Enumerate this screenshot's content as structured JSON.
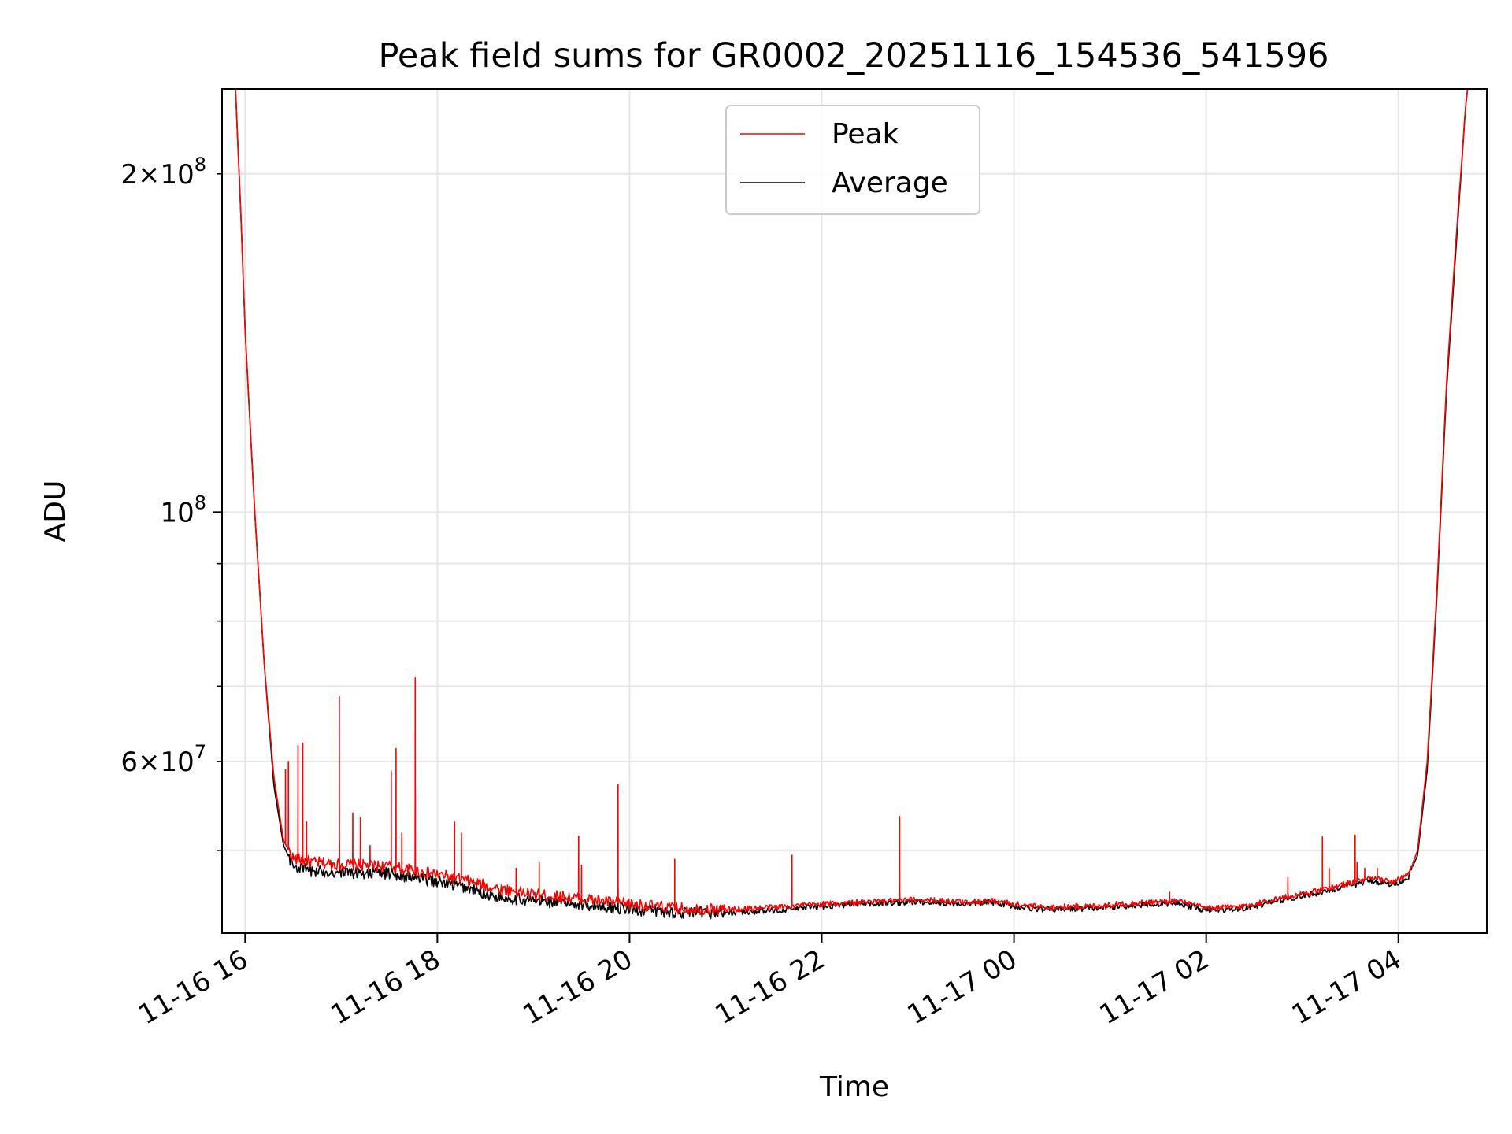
{
  "chart_data": {
    "type": "line",
    "title": "Peak field sums for GR0002_20251116_154536_541596",
    "xlabel": "Time",
    "ylabel": "ADU",
    "yscale": "log",
    "x_unit": "hours since 11-16 00:00",
    "xlim": [
      15.76,
      28.92
    ],
    "ylim": [
      42200000,
      238000000
    ],
    "grid": true,
    "legend_location": "upper center",
    "x_ticks": [
      {
        "value": 16,
        "label": "11-16 16"
      },
      {
        "value": 18,
        "label": "11-16 18"
      },
      {
        "value": 20,
        "label": "11-16 20"
      },
      {
        "value": 22,
        "label": "11-16 22"
      },
      {
        "value": 24,
        "label": "11-17 00"
      },
      {
        "value": 26,
        "label": "11-17 02"
      },
      {
        "value": 28,
        "label": "11-17 04"
      }
    ],
    "y_ticks_major": [
      {
        "value": 100000000,
        "base": "10",
        "exp": "8",
        "label": "10^8"
      }
    ],
    "y_ticks_minor_labeled": [
      {
        "value": 60000000,
        "mant": "6",
        "base": "10",
        "exp": "7",
        "label": "6×10^7"
      },
      {
        "value": 200000000,
        "mant": "2",
        "base": "10",
        "exp": "8",
        "label": "2×10^8"
      }
    ],
    "y_ticks_minor": [
      50000000,
      60000000,
      70000000,
      80000000,
      90000000,
      200000000
    ],
    "series": [
      {
        "name": "Peak",
        "color": "#ff0000",
        "base_points": [
          [
            15.9,
            238000000
          ],
          [
            15.96,
            180000000
          ],
          [
            16.0,
            145000000
          ],
          [
            16.1,
            100000000
          ],
          [
            16.2,
            73000000
          ],
          [
            16.3,
            58000000
          ],
          [
            16.4,
            51000000
          ],
          [
            16.5,
            49200000
          ],
          [
            16.7,
            48800000
          ],
          [
            17.0,
            48600000
          ],
          [
            17.5,
            48400000
          ],
          [
            17.8,
            47900000
          ],
          [
            18.0,
            47600000
          ],
          [
            18.3,
            47000000
          ],
          [
            18.6,
            46300000
          ],
          [
            19.0,
            45700000
          ],
          [
            19.5,
            45300000
          ],
          [
            20.0,
            44800000
          ],
          [
            20.5,
            44400000
          ],
          [
            21.0,
            44300000
          ],
          [
            21.5,
            44500000
          ],
          [
            22.0,
            44800000
          ],
          [
            22.5,
            45000000
          ],
          [
            23.0,
            45200000
          ],
          [
            23.5,
            45000000
          ],
          [
            23.8,
            45100000
          ],
          [
            24.0,
            44800000
          ],
          [
            24.3,
            44500000
          ],
          [
            24.8,
            44600000
          ],
          [
            25.3,
            44900000
          ],
          [
            25.7,
            45100000
          ],
          [
            26.0,
            44400000
          ],
          [
            26.4,
            44600000
          ],
          [
            26.8,
            45400000
          ],
          [
            27.2,
            46100000
          ],
          [
            27.5,
            46800000
          ],
          [
            27.7,
            47200000
          ],
          [
            27.95,
            46900000
          ],
          [
            28.1,
            47500000
          ],
          [
            28.2,
            50000000
          ],
          [
            28.3,
            60000000
          ],
          [
            28.4,
            85000000
          ],
          [
            28.5,
            130000000
          ],
          [
            28.6,
            175000000
          ],
          [
            28.7,
            230000000
          ],
          [
            28.72,
            238000000
          ]
        ],
        "spikes": [
          [
            16.42,
            59000000
          ],
          [
            16.45,
            60000000
          ],
          [
            16.55,
            62000000
          ],
          [
            16.6,
            62300000
          ],
          [
            16.64,
            53000000
          ],
          [
            16.98,
            68500000
          ],
          [
            17.12,
            54000000
          ],
          [
            17.2,
            53500000
          ],
          [
            17.3,
            50500000
          ],
          [
            17.52,
            58800000
          ],
          [
            17.57,
            61600000
          ],
          [
            17.63,
            51800000
          ],
          [
            17.77,
            71200000
          ],
          [
            18.18,
            53000000
          ],
          [
            18.25,
            51800000
          ],
          [
            18.82,
            48200000
          ],
          [
            19.06,
            48800000
          ],
          [
            19.47,
            51500000
          ],
          [
            19.5,
            48500000
          ],
          [
            19.88,
            57200000
          ],
          [
            20.47,
            49100000
          ],
          [
            21.69,
            49500000
          ],
          [
            22.81,
            53600000
          ],
          [
            25.62,
            45900000
          ],
          [
            26.85,
            47300000
          ],
          [
            27.21,
            51400000
          ],
          [
            27.28,
            48200000
          ],
          [
            27.55,
            51600000
          ],
          [
            27.57,
            48800000
          ],
          [
            27.65,
            48200000
          ],
          [
            27.78,
            48200000
          ]
        ]
      },
      {
        "name": "Average",
        "color": "#000000",
        "base_points": [
          [
            15.9,
            238000000
          ],
          [
            15.96,
            180000000
          ],
          [
            16.0,
            145000000
          ],
          [
            16.1,
            100000000
          ],
          [
            16.2,
            73000000
          ],
          [
            16.3,
            57000000
          ],
          [
            16.4,
            50500000
          ],
          [
            16.5,
            48400000
          ],
          [
            16.7,
            47900000
          ],
          [
            17.0,
            47800000
          ],
          [
            17.5,
            47700000
          ],
          [
            17.8,
            47200000
          ],
          [
            18.0,
            46900000
          ],
          [
            18.3,
            46300000
          ],
          [
            18.6,
            45500000
          ],
          [
            19.0,
            45100000
          ],
          [
            19.5,
            44800000
          ],
          [
            20.0,
            44300000
          ],
          [
            20.5,
            44000000
          ],
          [
            21.0,
            44000000
          ],
          [
            21.5,
            44200000
          ],
          [
            22.0,
            44600000
          ],
          [
            22.5,
            44800000
          ],
          [
            23.0,
            45000000
          ],
          [
            23.5,
            44800000
          ],
          [
            23.8,
            44950000
          ],
          [
            24.0,
            44600000
          ],
          [
            24.3,
            44300000
          ],
          [
            24.8,
            44400000
          ],
          [
            25.3,
            44700000
          ],
          [
            25.7,
            44900000
          ],
          [
            26.0,
            44200000
          ],
          [
            26.4,
            44400000
          ],
          [
            26.8,
            45200000
          ],
          [
            27.2,
            45900000
          ],
          [
            27.5,
            46500000
          ],
          [
            27.7,
            47000000
          ],
          [
            27.95,
            46600000
          ],
          [
            28.1,
            47300000
          ],
          [
            28.2,
            49500000
          ],
          [
            28.3,
            59000000
          ],
          [
            28.4,
            84000000
          ],
          [
            28.5,
            128000000
          ],
          [
            28.6,
            172000000
          ],
          [
            28.7,
            230000000
          ],
          [
            28.72,
            238000000
          ]
        ],
        "spikes": [
          [
            16.98,
            51000000
          ],
          [
            17.77,
            56800000
          ],
          [
            19.88,
            46200000
          ],
          [
            22.81,
            45900000
          ]
        ]
      }
    ]
  }
}
